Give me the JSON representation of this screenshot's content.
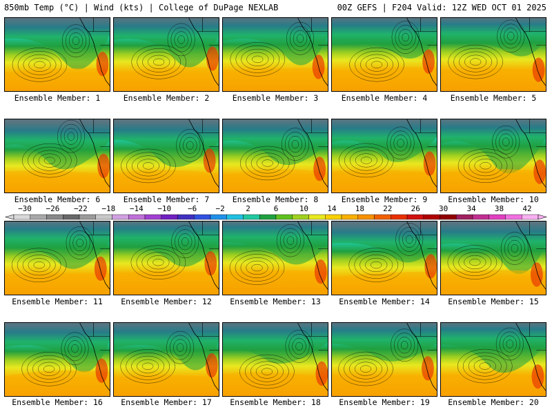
{
  "header": {
    "title_left": "850mb Temp (°C) | Wind (kts) | College of DuPage NEXLAB",
    "title_right": "00Z GEFS | F204 Valid: 12Z WED OCT 01 2025"
  },
  "members": [
    {
      "label": "Ensemble Member: 1"
    },
    {
      "label": "Ensemble Member: 2"
    },
    {
      "label": "Ensemble Member: 3"
    },
    {
      "label": "Ensemble Member: 4"
    },
    {
      "label": "Ensemble Member: 5"
    },
    {
      "label": "Ensemble Member: 6"
    },
    {
      "label": "Ensemble Member: 7"
    },
    {
      "label": "Ensemble Member: 8"
    },
    {
      "label": "Ensemble Member: 9"
    },
    {
      "label": "Ensemble Member: 10"
    },
    {
      "label": "Ensemble Member: 11"
    },
    {
      "label": "Ensemble Member: 12"
    },
    {
      "label": "Ensemble Member: 13"
    },
    {
      "label": "Ensemble Member: 14"
    },
    {
      "label": "Ensemble Member: 15"
    },
    {
      "label": "Ensemble Member: 16"
    },
    {
      "label": "Ensemble Member: 17"
    },
    {
      "label": "Ensemble Member: 18"
    },
    {
      "label": "Ensemble Member: 19"
    },
    {
      "label": "Ensemble Member: 20"
    }
  ],
  "colorbar": {
    "tick_labels": [
      "−30",
      "−26",
      "−22",
      "−18",
      "−14",
      "−10",
      "−6",
      "−2",
      "2",
      "6",
      "10",
      "14",
      "18",
      "22",
      "26",
      "30",
      "34",
      "38",
      "42"
    ],
    "colors": [
      "#d8d8d8",
      "#a8a8a8",
      "#888888",
      "#686868",
      "#9a9a9a",
      "#c8c8c8",
      "#d0a0e0",
      "#c070d8",
      "#a040d0",
      "#7020c0",
      "#4030c0",
      "#3050e0",
      "#2090e8",
      "#20c0e0",
      "#20c8a0",
      "#20a040",
      "#60c020",
      "#a0d020",
      "#e8e820",
      "#f8d000",
      "#f8b000",
      "#f89000",
      "#f06000",
      "#e83000",
      "#d01010",
      "#b00000",
      "#900000",
      "#a02060",
      "#c03090",
      "#e040c0",
      "#f070e0",
      "#f8b0f0"
    ]
  }
}
